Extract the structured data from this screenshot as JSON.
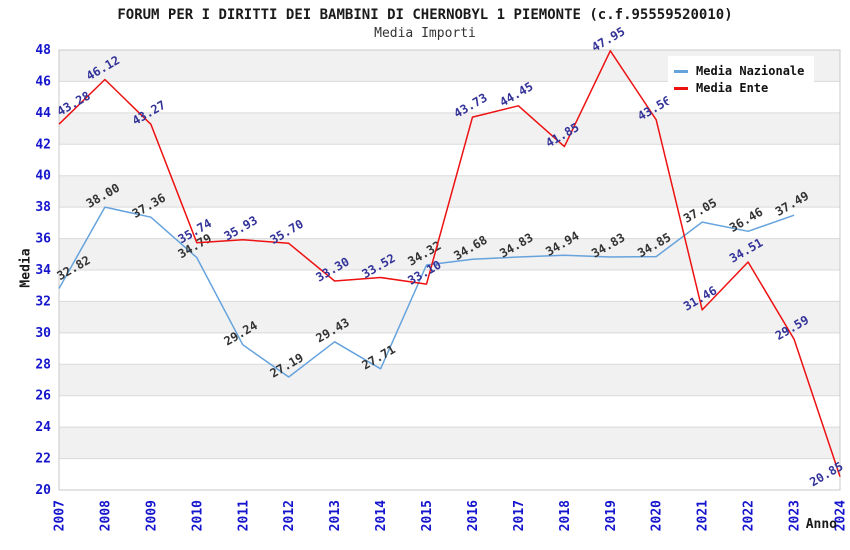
{
  "chart_data": {
    "type": "line",
    "title": "FORUM PER I DIRITTI DEI BAMBINI DI CHERNOBYL 1 PIEMONTE (c.f.95559520010)",
    "subtitle": "Media Importi",
    "xlabel": "Anno",
    "ylabel": "Media",
    "ylim": [
      20,
      48
    ],
    "ytick_step": 2,
    "grid": "horizontal-bands",
    "legend_position": "top-right",
    "categories": [
      "2007",
      "2008",
      "2009",
      "2010",
      "2011",
      "2012",
      "2013",
      "2014",
      "2015",
      "2016",
      "2017",
      "2018",
      "2019",
      "2020",
      "2021",
      "2022",
      "2023",
      "2024"
    ],
    "series": [
      {
        "name": "Media Nazionale",
        "color": "#66a3dd",
        "label_color": "#333333",
        "values": [
          32.82,
          38.0,
          37.36,
          34.79,
          29.24,
          27.19,
          29.43,
          27.71,
          34.32,
          34.68,
          34.83,
          34.94,
          34.83,
          34.85,
          37.05,
          36.46,
          37.49,
          null
        ]
      },
      {
        "name": "Media Ente",
        "color": "#ee1111",
        "label_color": "#333399",
        "values": [
          43.28,
          46.12,
          43.27,
          35.74,
          35.93,
          35.7,
          33.3,
          33.52,
          33.1,
          43.73,
          44.45,
          41.85,
          47.95,
          43.56,
          31.46,
          34.51,
          29.59,
          20.85
        ]
      }
    ],
    "colors": {
      "axis_tick_label": "#1515cd",
      "band_fill": "#f1f1f1",
      "gridline": "#dadada",
      "plot_border": "#c9c9c9",
      "title_text": "#1a1a1a"
    }
  }
}
